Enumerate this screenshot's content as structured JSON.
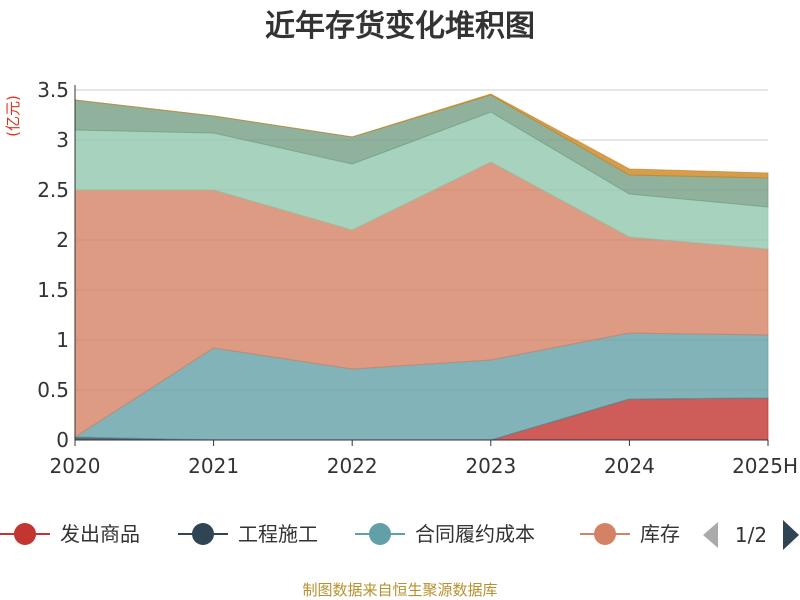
{
  "chart_data": {
    "type": "area",
    "stacked": true,
    "title": "近年存货变化堆积图",
    "unit": "亿元",
    "categories": [
      "2020",
      "2021",
      "2022",
      "2023",
      "2024",
      "2025H"
    ],
    "ylim": [
      0,
      3.5
    ],
    "yticks": [
      "0",
      "0.5",
      "1",
      "1.5",
      "2",
      "2.5",
      "3",
      "3.5"
    ],
    "grid": true,
    "series": [
      {
        "name": "发出商品",
        "color": "#c23531",
        "values": [
          0,
          0,
          0,
          0,
          0.41,
          0.42
        ]
      },
      {
        "name": "工程施工",
        "color": "#2f4554",
        "values": [
          0.03,
          0,
          0,
          0,
          0,
          0
        ]
      },
      {
        "name": "合同履约成本",
        "color": "#61a0a8",
        "values": [
          0,
          0.92,
          0.71,
          0.8,
          0.66,
          0.63
        ]
      },
      {
        "name": "库存",
        "color": "#d48265",
        "values": [
          2.47,
          1.58,
          1.39,
          1.98,
          0.96,
          0.86
        ]
      },
      {
        "name": "",
        "color": "#91c7ae",
        "values": [
          0.6,
          0.57,
          0.66,
          0.5,
          0.43,
          0.42
        ]
      },
      {
        "name": "",
        "color": "#749f83",
        "values": [
          0.3,
          0.17,
          0.27,
          0.17,
          0.19,
          0.29
        ]
      },
      {
        "name": "",
        "color": "#ca8622",
        "values": [
          0,
          0,
          0,
          0.01,
          0.06,
          0.05
        ]
      }
    ],
    "legend_position": "bottom",
    "legend_page": "1/2"
  },
  "source": "制图数据来自恒生聚源数据库"
}
